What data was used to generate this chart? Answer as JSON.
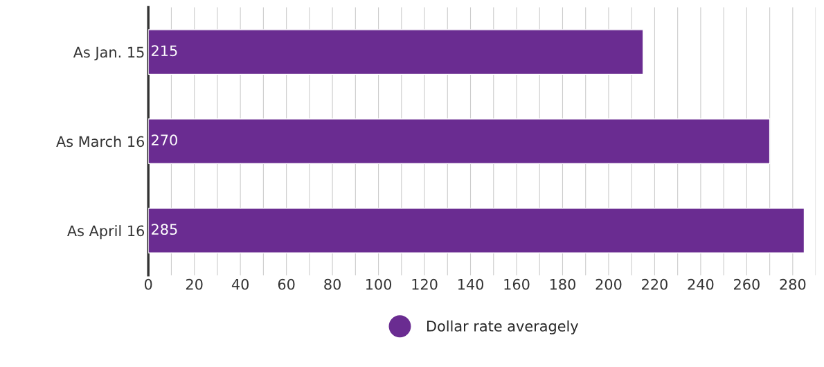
{
  "chart_data": {
    "type": "bar",
    "orientation": "horizontal",
    "categories": [
      "As Jan. 15",
      "As March 16",
      "As April 16"
    ],
    "series": [
      {
        "name": "Dollar rate averagely",
        "color": "#6a2c91",
        "values": [
          215,
          270,
          285
        ]
      }
    ],
    "data_labels": true,
    "xlim": [
      0,
      290
    ],
    "xticks": [
      0,
      {
        "value": 10,
        "label": null
      },
      20,
      {
        "value": 30,
        "label": null
      },
      40,
      {
        "value": 50,
        "label": null
      },
      60,
      {
        "value": 70,
        "label": null
      },
      80,
      {
        "value": 90,
        "label": null
      },
      100,
      {
        "value": 110,
        "label": null
      },
      120,
      {
        "value": 130,
        "label": null
      },
      140,
      {
        "value": 150,
        "label": null
      },
      160,
      {
        "value": 170,
        "label": null
      },
      180,
      {
        "value": 190,
        "label": null
      },
      200,
      {
        "value": 210,
        "label": null
      },
      220,
      {
        "value": 230,
        "label": null
      },
      240,
      {
        "value": 250,
        "label": null
      },
      260,
      {
        "value": 270,
        "label": null
      },
      280,
      {
        "value": 290,
        "label": null
      }
    ],
    "grid": "x",
    "legend": "bottom"
  }
}
